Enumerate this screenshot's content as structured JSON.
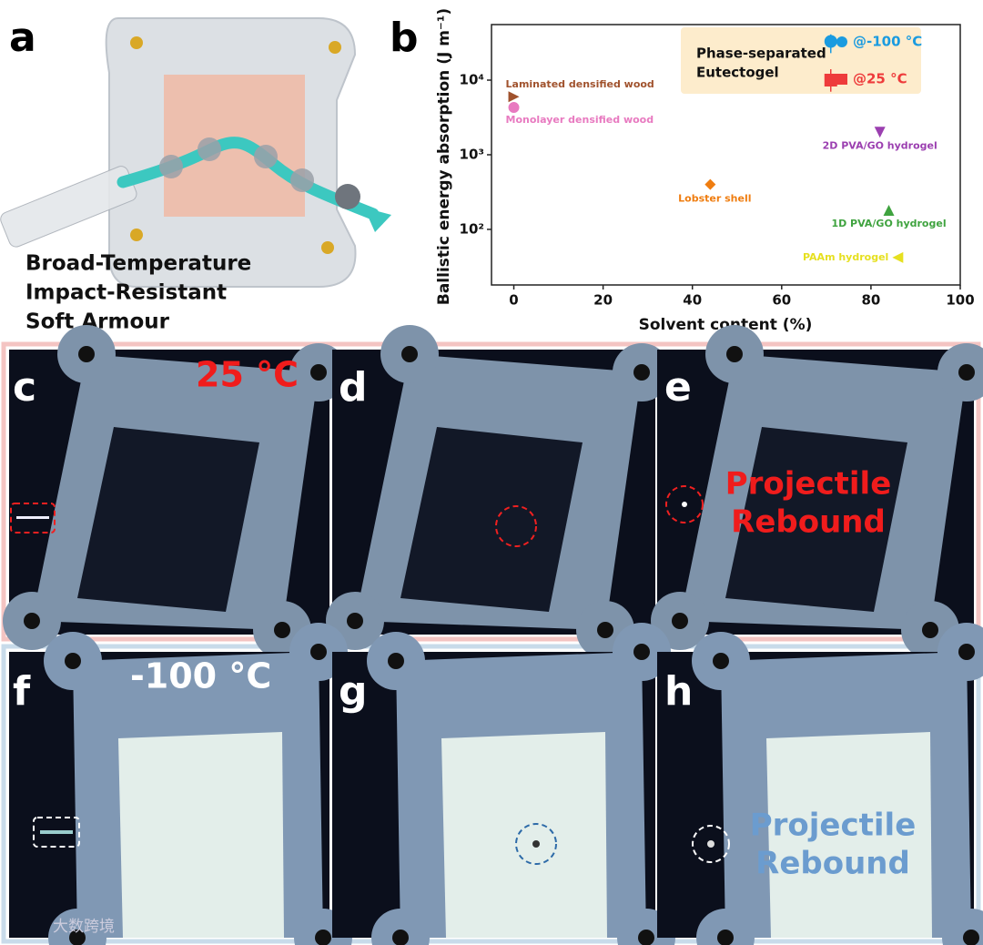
{
  "chart_data": {
    "type": "scatter",
    "x_label": "Solvent content (%)",
    "y_label": "Ballistic energy absorption (J m⁻¹)",
    "xlim": [
      -5,
      100
    ],
    "ylim": [
      18,
      55500
    ],
    "y_scale": "log",
    "xticks": [
      0,
      20,
      40,
      60,
      80,
      100
    ],
    "yticks": [
      {
        "value": 100,
        "label": "10²"
      },
      {
        "value": 1000,
        "label": "10³"
      },
      {
        "value": 10000,
        "label": "10⁴"
      }
    ],
    "legend_title": [
      "Phase-separated",
      "Eutectogel"
    ],
    "series": [
      {
        "name": "Laminated densified wood",
        "color": "#a0522d",
        "marker": "triangle-right",
        "x": [
          0
        ],
        "values": [
          6000
        ]
      },
      {
        "name": "Monolayer densified wood",
        "color": "#e87ac0",
        "marker": "circle",
        "x": [
          0
        ],
        "values": [
          4300
        ]
      },
      {
        "name": "2D PVA/GO hydrogel",
        "color": "#9b3fb0",
        "marker": "triangle-down",
        "x": [
          82
        ],
        "values": [
          2000
        ]
      },
      {
        "name": "Lobster shell",
        "color": "#ef7d10",
        "marker": "diamond",
        "x": [
          44
        ],
        "values": [
          400
        ]
      },
      {
        "name": "1D PVA/GO hydrogel",
        "color": "#3fa33f",
        "marker": "triangle-up",
        "x": [
          84
        ],
        "values": [
          180
        ]
      },
      {
        "name": "PAAm hydrogel",
        "color": "#e6e020",
        "marker": "triangle-left",
        "x": [
          86
        ],
        "values": [
          42
        ]
      },
      {
        "name": "@-100 °C",
        "color": "#1a9be0",
        "marker": "circle",
        "legend": true,
        "x": [
          71
        ],
        "values": [
          33000
        ],
        "yerr_minus": [
          10000
        ],
        "yerr_plus": [
          8000
        ]
      },
      {
        "name": "@25 °C",
        "color": "#ee3b3b",
        "marker": "square",
        "legend": true,
        "x": [
          71
        ],
        "values": [
          10000
        ],
        "yerr_minus": [
          3000
        ],
        "yerr_plus": [
          4000
        ]
      }
    ]
  },
  "figure": {
    "panel_a": {
      "label": "a",
      "caption": [
        "Broad-Temperature",
        "Impact-Resistant",
        "Soft Armour"
      ]
    },
    "panel_b": {
      "label": "b"
    },
    "row_25": {
      "labels": [
        "c",
        "d",
        "e"
      ],
      "temperature": "25 °C",
      "note": [
        "Projectile",
        "Rebound"
      ]
    },
    "row_minus100": {
      "labels": [
        "f",
        "g",
        "h"
      ],
      "temperature": "-100 °C",
      "note": [
        "Projectile",
        "Rebound"
      ]
    },
    "watermark": "大数跨境"
  }
}
